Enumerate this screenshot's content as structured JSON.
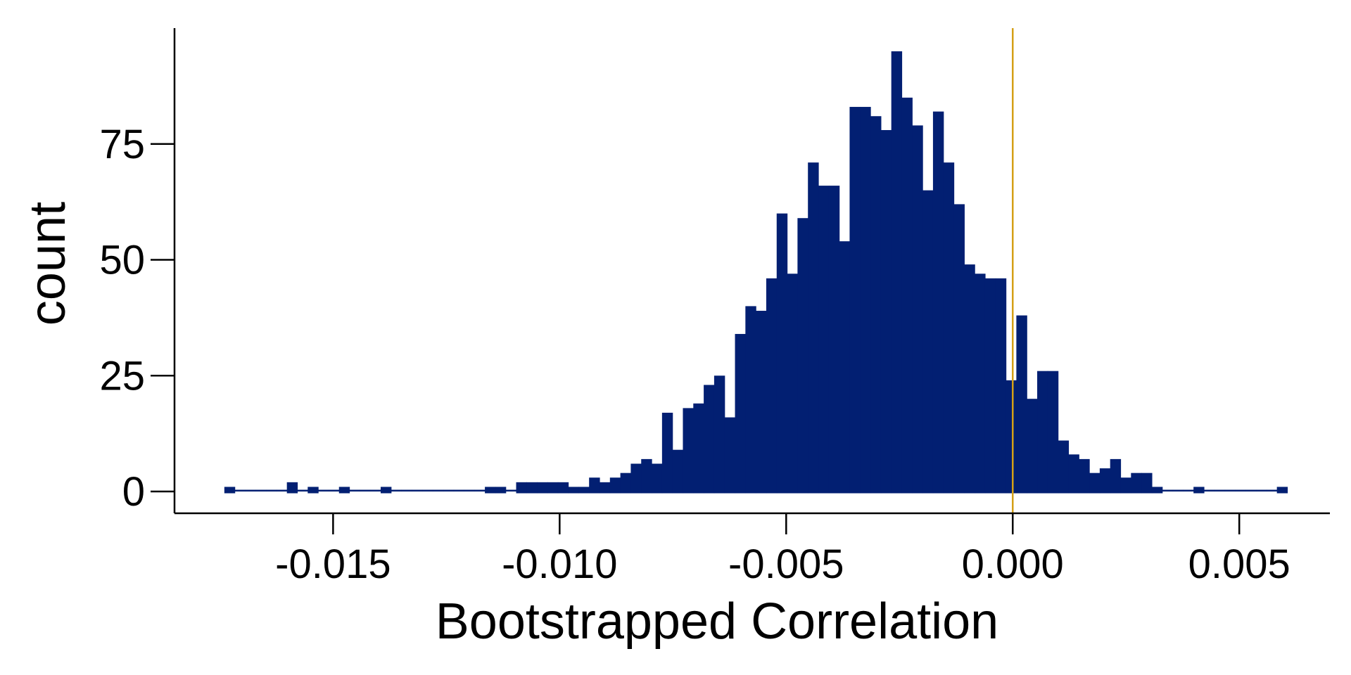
{
  "chart_data": {
    "type": "bar",
    "xlabel": "Bootstrapped Correlation",
    "ylabel": "count",
    "xlim": [
      -0.0185,
      0.007
    ],
    "ylim": [
      -4.7,
      100
    ],
    "x_ticks": [
      -0.015,
      -0.01,
      -0.005,
      0.0,
      0.005
    ],
    "x_tick_labels": [
      "-0.015",
      "-0.010",
      "-0.005",
      "0.000",
      "0.005"
    ],
    "y_ticks": [
      0,
      25,
      50,
      75
    ],
    "y_tick_labels": [
      "0",
      "25",
      "50",
      "75"
    ],
    "grid": false,
    "legend": "none",
    "bin_edges_range": [
      -0.0174,
      0.006
    ],
    "bin_width": 0.00023,
    "counts": [
      1,
      0,
      0,
      0,
      0,
      0,
      2,
      0,
      1,
      0,
      0,
      1,
      0,
      0,
      0,
      1,
      0,
      0,
      0,
      0,
      0,
      0,
      0,
      0,
      0,
      1,
      1,
      0,
      2,
      2,
      2,
      2,
      2,
      1,
      1,
      3,
      2,
      3,
      4,
      6,
      7,
      6,
      17,
      9,
      18,
      19,
      23,
      25,
      16,
      34,
      40,
      39,
      46,
      60,
      47,
      59,
      71,
      66,
      66,
      54,
      83,
      83,
      81,
      78,
      95,
      85,
      79,
      65,
      82,
      71,
      62,
      49,
      47,
      46,
      46,
      24,
      38,
      20,
      26,
      26,
      11,
      8,
      7,
      4,
      5,
      7,
      3,
      4,
      4,
      1,
      0,
      0,
      0,
      1,
      0,
      0,
      0,
      0,
      0,
      0,
      0,
      1
    ],
    "reference_line": {
      "x": 0.0
    },
    "colors": {
      "bars": "#021f72",
      "reference_line": "#d4a017",
      "axis": "#000000"
    }
  }
}
